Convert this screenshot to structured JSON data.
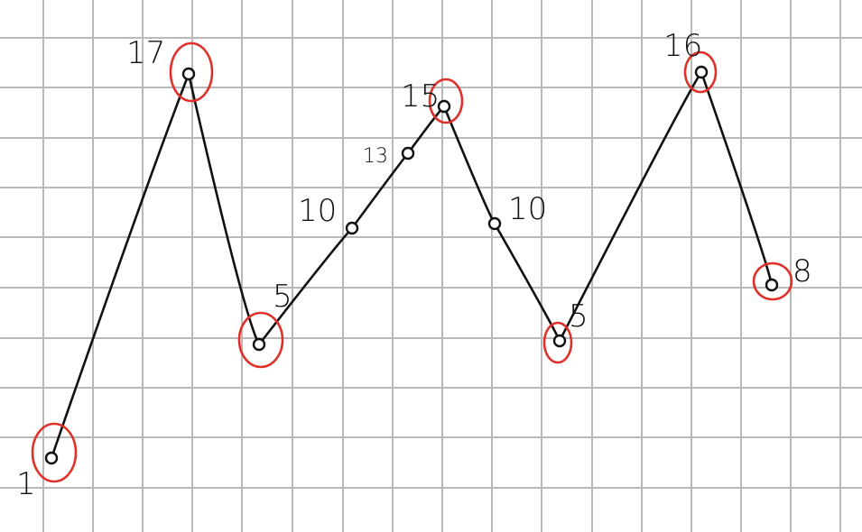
{
  "sketch": {
    "points": [
      {
        "value": 1,
        "label": "1",
        "extremum": true
      },
      {
        "value": 17,
        "label": "17",
        "extremum": true
      },
      {
        "value": 5,
        "label": "5",
        "extremum": true
      },
      {
        "value": 10,
        "label": "10",
        "extremum": false
      },
      {
        "value": 13,
        "label": "13",
        "extremum": false
      },
      {
        "value": 15,
        "label": "15",
        "extremum": true
      },
      {
        "value": 10,
        "label": "10",
        "extremum": false
      },
      {
        "value": 5,
        "label": "5",
        "extremum": true
      },
      {
        "value": 16,
        "label": "16",
        "extremum": true
      },
      {
        "value": 8,
        "label": "8",
        "extremum": true
      }
    ],
    "colors": {
      "grid": "#b9b9b9",
      "ink": "#111111",
      "highlight": "#e0302a",
      "paper": "#ffffff"
    }
  }
}
